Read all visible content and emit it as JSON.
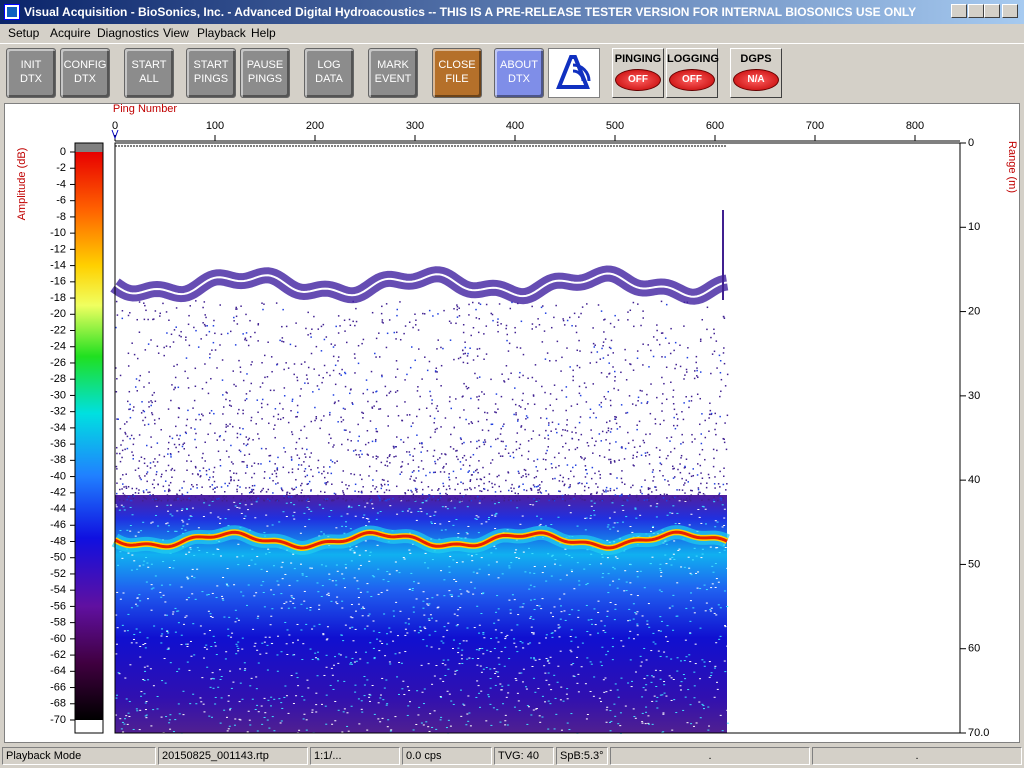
{
  "window": {
    "title": "Visual Acquisition  -  BioSonics, Inc.  -  Advanced Digital Hydroacoustics  -- THIS IS A PRE-RELEASE TESTER VERSION FOR INTERNAL BIOSONICS USE ONLY"
  },
  "menu": [
    "Setup",
    "Acquire",
    "Diagnostics",
    "View",
    "Playback",
    "Help"
  ],
  "toolbar": [
    {
      "lines": [
        "INIT",
        "DTX"
      ],
      "color": "#8c8c8c"
    },
    {
      "lines": [
        "CONFIG",
        "DTX"
      ],
      "color": "#8c8c8c"
    },
    {
      "lines": [
        "START",
        "ALL"
      ],
      "color": "#8c8c8c"
    },
    {
      "lines": [
        "START",
        "PINGS"
      ],
      "color": "#8c8c8c"
    },
    {
      "lines": [
        "PAUSE",
        "PINGS"
      ],
      "color": "#8c8c8c"
    },
    {
      "lines": [
        "LOG",
        "DATA"
      ],
      "color": "#8c8c8c"
    },
    {
      "lines": [
        "MARK",
        "EVENT"
      ],
      "color": "#8c8c8c"
    },
    {
      "lines": [
        "CLOSE",
        "FILE"
      ],
      "color": "#b5702a"
    },
    {
      "lines": [
        "ABOUT",
        "DTX"
      ],
      "color": "#7f8ee8"
    }
  ],
  "indicators": [
    {
      "label": "PINGING",
      "state": "OFF"
    },
    {
      "label": "LOGGING",
      "state": "OFF"
    },
    {
      "label": "DGPS",
      "state": "N/A"
    }
  ],
  "echogram": {
    "ping_axis": {
      "title": "Ping Number",
      "lim": [
        0,
        845
      ],
      "ticks": [
        0,
        100,
        200,
        300,
        400,
        500,
        600,
        700,
        800
      ]
    },
    "range_axis": {
      "title": "Range (m)",
      "lim": [
        0,
        70
      ],
      "ticks": [
        0,
        10,
        20,
        30,
        40,
        50,
        60,
        {
          "value": 70,
          "label": "70.0"
        }
      ]
    },
    "amplitude_scale": {
      "title": "Amplitude (dB)",
      "lim": [
        -70,
        0
      ],
      "ticks": [
        0,
        -2,
        -4,
        -6,
        -8,
        -10,
        -12,
        -14,
        -16,
        -18,
        -20,
        -22,
        -24,
        -26,
        -28,
        -30,
        -32,
        -34,
        -36,
        -38,
        -40,
        -42,
        -44,
        -46,
        -48,
        -50,
        -52,
        -54,
        -56,
        -58,
        -60,
        -62,
        -64,
        -66,
        -68,
        -70
      ]
    }
  },
  "status_bar": [
    "Playback Mode",
    "20150825_001143.rtp",
    "1:1/...",
    "0.0 cps",
    "TVG: 40",
    "SpB:5.3°",
    ".",
    "."
  ]
}
